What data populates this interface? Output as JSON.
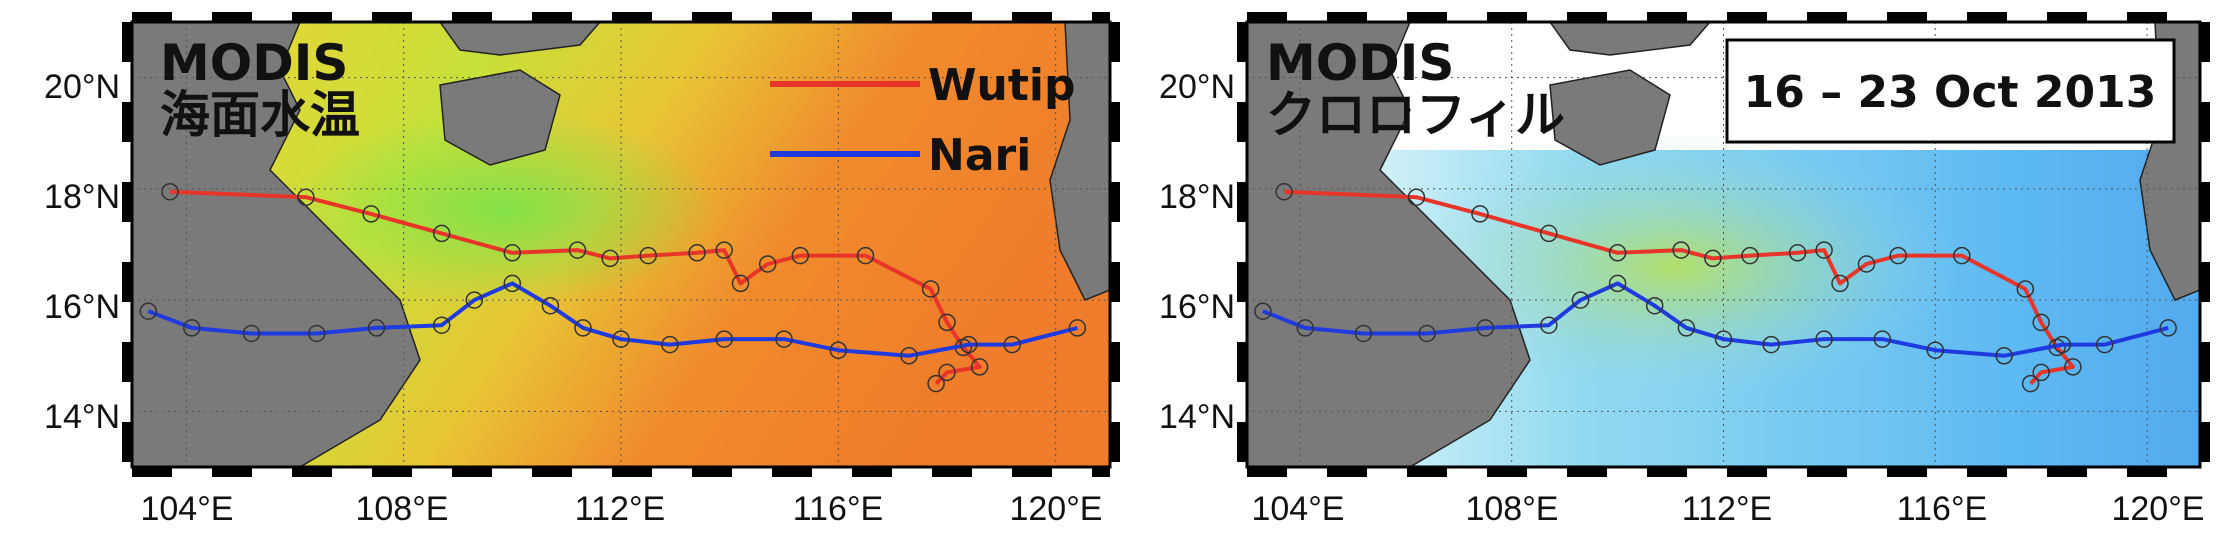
{
  "panels": [
    {
      "title_line1": "MODIS",
      "title_line2": "海面水温",
      "variable": "sea-surface-temperature",
      "colors": {
        "land": "#7a7a7a",
        "field_base": "#f1c237",
        "no_data": "#ffffff"
      },
      "legend": [
        {
          "name": "Wutip",
          "color": "#e8352a"
        },
        {
          "name": "Nari",
          "color": "#1f3be0"
        }
      ]
    },
    {
      "title_line1": "MODIS",
      "title_line2": "クロロフィル",
      "variable": "chlorophyll",
      "date_label": "16 – 23 Oct 2013",
      "colors": {
        "land": "#7a7a7a",
        "field_base": "#ffffff",
        "no_data": "#ffffff"
      }
    }
  ],
  "axes": {
    "x_ticks": [
      "104°E",
      "108°E",
      "112°E",
      "116°E",
      "120°E"
    ],
    "y_ticks": [
      "20°N",
      "18°N",
      "16°N",
      "14°N"
    ],
    "lon_range": [
      103.0,
      121.0
    ],
    "lat_range": [
      13.0,
      21.0
    ],
    "gridlines": true
  },
  "tracks": [
    {
      "name": "Wutip",
      "color": "#e8352a",
      "points": [
        [
          103.7,
          17.95
        ],
        [
          106.2,
          17.85
        ],
        [
          107.4,
          17.55
        ],
        [
          108.7,
          17.2
        ],
        [
          110.0,
          16.85
        ],
        [
          111.2,
          16.9
        ],
        [
          111.8,
          16.75
        ],
        [
          112.5,
          16.8
        ],
        [
          113.4,
          16.85
        ],
        [
          113.9,
          16.9
        ],
        [
          114.2,
          16.3
        ],
        [
          114.7,
          16.65
        ],
        [
          115.3,
          16.8
        ],
        [
          116.5,
          16.8
        ],
        [
          117.7,
          16.2
        ],
        [
          118.0,
          15.6
        ],
        [
          118.3,
          15.15
        ],
        [
          118.6,
          14.8
        ],
        [
          118.0,
          14.7
        ],
        [
          117.8,
          14.5
        ]
      ]
    },
    {
      "name": "Nari",
      "color": "#1f3be0",
      "points": [
        [
          103.3,
          15.8
        ],
        [
          104.1,
          15.5
        ],
        [
          105.2,
          15.4
        ],
        [
          106.4,
          15.4
        ],
        [
          107.5,
          15.5
        ],
        [
          108.7,
          15.55
        ],
        [
          109.3,
          16.0
        ],
        [
          110.0,
          16.3
        ],
        [
          110.7,
          15.9
        ],
        [
          111.3,
          15.5
        ],
        [
          112.0,
          15.3
        ],
        [
          112.9,
          15.2
        ],
        [
          113.9,
          15.3
        ],
        [
          115.0,
          15.3
        ],
        [
          116.0,
          15.1
        ],
        [
          117.3,
          15.0
        ],
        [
          118.4,
          15.2
        ],
        [
          119.2,
          15.2
        ],
        [
          120.4,
          15.5
        ]
      ]
    }
  ]
}
